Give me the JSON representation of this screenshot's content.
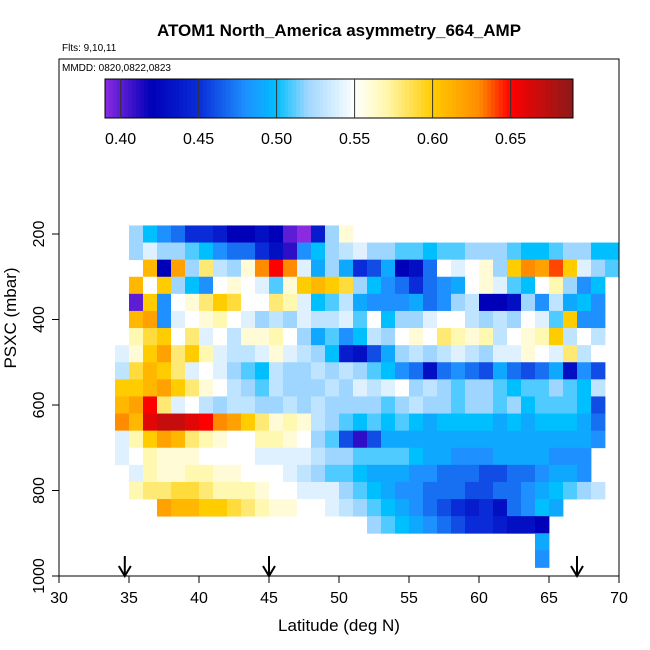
{
  "chart_data": {
    "type": "heatmap",
    "title": "ATOM1 North_America asymmetry_664_AMP",
    "flights_note": "Flts: 9,10,11",
    "dates_note": "MMDD: 0820,0822,0823",
    "xlabel": "Latitude (deg N)",
    "ylabel": "PSXC (mbar)",
    "xlim": [
      30,
      70
    ],
    "ylim": [
      1000,
      0
    ],
    "x_ticks": [
      30,
      35,
      40,
      45,
      50,
      55,
      60,
      65,
      70
    ],
    "y_ticks": [
      200,
      400,
      600,
      800,
      1000
    ],
    "colorbar": {
      "range": [
        0.39,
        0.69
      ],
      "tick_values": [
        0.4,
        0.45,
        0.5,
        0.55,
        0.6,
        0.65
      ],
      "tick_labels": [
        "0.40",
        "0.45",
        "0.50",
        "0.55",
        "0.60",
        "0.65"
      ],
      "stops": [
        {
          "value": 0.39,
          "color": "#8a2be2"
        },
        {
          "value": 0.42,
          "color": "#0000b8"
        },
        {
          "value": 0.45,
          "color": "#0a2cd8"
        },
        {
          "value": 0.48,
          "color": "#1e90ff"
        },
        {
          "value": 0.5,
          "color": "#00bfff"
        },
        {
          "value": 0.52,
          "color": "#9fd6ff"
        },
        {
          "value": 0.55,
          "color": "#ffffff"
        },
        {
          "value": 0.57,
          "color": "#fff8b0"
        },
        {
          "value": 0.6,
          "color": "#ffcc00"
        },
        {
          "value": 0.63,
          "color": "#ff8c00"
        },
        {
          "value": 0.65,
          "color": "#ff0000"
        },
        {
          "value": 0.69,
          "color": "#8b1a1a"
        }
      ]
    },
    "bin_width_deg": 1,
    "bin_height_mbar": 40,
    "cell_rows": [
      {
        "p": 200,
        "lat0": 35,
        "values": [
          0.52,
          0.5,
          0.48,
          0.47,
          0.45,
          0.45,
          0.44,
          0.42,
          0.42,
          0.43,
          0.42,
          0.4,
          0.39,
          0.44,
          0.52,
          0.56
        ]
      },
      {
        "p": 240,
        "lat0": 35,
        "values": [
          0.52,
          0.54,
          0.52,
          0.52,
          0.51,
          0.5,
          0.48,
          0.47,
          0.47,
          0.45,
          0.43,
          0.41,
          0.48,
          0.5,
          0.52,
          0.53,
          0.54,
          0.52,
          0.52,
          0.51,
          0.51,
          0.5,
          0.51,
          0.51,
          0.52,
          0.52,
          0.52,
          0.51,
          0.5,
          0.5,
          0.51,
          0.52,
          0.52,
          0.5,
          0.5
        ]
      },
      {
        "p": 280,
        "lat0": 36,
        "values": [
          0.61,
          0.42,
          0.62,
          0.52,
          0.58,
          0.53,
          0.52,
          0.56,
          0.63,
          0.65,
          0.63,
          0.54,
          0.49,
          0.52,
          0.49,
          0.45,
          0.46,
          0.49,
          0.42,
          0.43,
          0.47,
          0.55,
          0.54,
          0.55,
          0.56,
          0.52,
          0.6,
          0.63,
          0.62,
          0.64,
          0.6,
          0.54,
          0.52,
          0.51
        ]
      },
      {
        "p": 320,
        "lat0": 35,
        "values": [
          0.61,
          0.55,
          0.6,
          0.52,
          0.5,
          0.48,
          0.55,
          0.56,
          0.55,
          0.54,
          0.51,
          0.56,
          0.6,
          0.61,
          0.6,
          0.59,
          0.52,
          0.5,
          0.48,
          0.47,
          0.45,
          0.47,
          0.48,
          0.49,
          0.55,
          0.56,
          0.54,
          0.51,
          0.5,
          0.55,
          0.57,
          0.52,
          0.48,
          0.5
        ]
      },
      {
        "p": 360,
        "lat0": 35,
        "values": [
          0.4,
          0.6,
          0.48,
          0.55,
          0.56,
          0.58,
          0.6,
          0.59,
          0.55,
          0.55,
          0.58,
          0.57,
          0.54,
          0.5,
          0.51,
          0.53,
          0.49,
          0.48,
          0.48,
          0.48,
          0.49,
          0.47,
          0.48,
          0.52,
          0.53,
          0.42,
          0.42,
          0.43,
          0.52,
          0.48,
          0.53,
          0.49,
          0.5,
          0.48
        ]
      },
      {
        "p": 400,
        "lat0": 35,
        "values": [
          0.61,
          0.62,
          0.48,
          0.54,
          0.55,
          0.56,
          0.57,
          0.55,
          0.54,
          0.52,
          0.53,
          0.52,
          0.54,
          0.53,
          0.53,
          0.54,
          0.51,
          0.55,
          0.5,
          0.52,
          0.52,
          0.54,
          0.55,
          0.55,
          0.53,
          0.52,
          0.53,
          0.52,
          0.55,
          0.54,
          0.51,
          0.6,
          0.48,
          0.48
        ]
      },
      {
        "p": 440,
        "lat0": 35,
        "values": [
          0.57,
          0.59,
          0.6,
          0.55,
          0.58,
          0.54,
          0.55,
          0.53,
          0.56,
          0.56,
          0.57,
          0.55,
          0.52,
          0.49,
          0.51,
          0.48,
          0.5,
          0.53,
          0.52,
          0.55,
          0.56,
          0.55,
          0.58,
          0.57,
          0.56,
          0.57,
          0.53,
          0.55,
          0.56,
          0.57,
          0.6,
          0.53,
          0.55,
          0.53
        ]
      },
      {
        "p": 480,
        "lat0": 34,
        "values": [
          0.54,
          0.56,
          0.6,
          0.62,
          0.58,
          0.6,
          0.57,
          0.54,
          0.53,
          0.53,
          0.54,
          0.56,
          0.54,
          0.53,
          0.52,
          0.5,
          0.44,
          0.43,
          0.46,
          0.49,
          0.52,
          0.53,
          0.52,
          0.53,
          0.54,
          0.53,
          0.52,
          0.54,
          0.54,
          0.56,
          0.55,
          0.54,
          0.58,
          0.53,
          0.55
        ]
      },
      {
        "p": 520,
        "lat0": 34,
        "values": [
          0.53,
          0.59,
          0.61,
          0.6,
          0.58,
          0.54,
          0.55,
          0.54,
          0.52,
          0.51,
          0.5,
          0.53,
          0.52,
          0.52,
          0.53,
          0.52,
          0.53,
          0.52,
          0.51,
          0.5,
          0.48,
          0.47,
          0.43,
          0.47,
          0.48,
          0.47,
          0.46,
          0.49,
          0.47,
          0.46,
          0.47,
          0.49,
          0.43,
          0.48,
          0.46
        ]
      },
      {
        "p": 560,
        "lat0": 34,
        "values": [
          0.6,
          0.6,
          0.61,
          0.62,
          0.6,
          0.58,
          0.56,
          0.55,
          0.53,
          0.52,
          0.51,
          0.53,
          0.52,
          0.52,
          0.52,
          0.53,
          0.52,
          0.54,
          0.53,
          0.54,
          0.55,
          0.52,
          0.53,
          0.52,
          0.51,
          0.52,
          0.52,
          0.51,
          0.5,
          0.51,
          0.51,
          0.52,
          0.51,
          0.5,
          0.53
        ]
      },
      {
        "p": 600,
        "lat0": 34,
        "values": [
          0.61,
          0.62,
          0.65,
          0.58,
          0.54,
          0.55,
          0.53,
          0.52,
          0.53,
          0.53,
          0.52,
          0.52,
          0.53,
          0.52,
          0.53,
          0.52,
          0.52,
          0.52,
          0.52,
          0.51,
          0.52,
          0.53,
          0.52,
          0.52,
          0.51,
          0.52,
          0.52,
          0.51,
          0.52,
          0.5,
          0.51,
          0.51,
          0.51,
          0.5,
          0.46
        ]
      },
      {
        "p": 640,
        "lat0": 34,
        "values": [
          0.63,
          0.61,
          0.66,
          0.67,
          0.67,
          0.66,
          0.65,
          0.63,
          0.62,
          0.6,
          0.58,
          0.56,
          0.57,
          0.56,
          0.53,
          0.52,
          0.51,
          0.5,
          0.51,
          0.5,
          0.51,
          0.5,
          0.49,
          0.5,
          0.5,
          0.5,
          0.5,
          0.49,
          0.5,
          0.49,
          0.5,
          0.5,
          0.5,
          0.49,
          0.47
        ]
      },
      {
        "p": 680,
        "lat0": 34,
        "values": [
          0.54,
          0.57,
          0.6,
          0.62,
          0.61,
          0.58,
          0.57,
          0.56,
          0.55,
          0.55,
          0.57,
          0.57,
          0.56,
          0.55,
          0.52,
          0.51,
          0.46,
          0.41,
          0.46,
          0.49,
          0.49,
          0.49,
          0.49,
          0.49,
          0.49,
          0.49,
          0.49,
          0.49,
          0.49,
          0.49,
          0.49,
          0.49,
          0.49,
          0.49,
          0.48
        ]
      },
      {
        "p": 720,
        "lat0": 34,
        "values": [
          0.54,
          0.55,
          0.57,
          0.56,
          0.56,
          0.56,
          0.55,
          0.55,
          0.55,
          0.55,
          0.54,
          0.54,
          0.54,
          0.54,
          0.53,
          0.52,
          0.52,
          0.51,
          0.51,
          0.51,
          0.51,
          0.5,
          0.49,
          0.49,
          0.48,
          0.48,
          0.48,
          0.49,
          0.49,
          0.49,
          0.49,
          0.48,
          0.48,
          0.48
        ]
      },
      {
        "p": 760,
        "lat0": 35,
        "values": [
          0.54,
          0.57,
          0.56,
          0.56,
          0.57,
          0.57,
          0.56,
          0.56,
          0.55,
          0.55,
          0.55,
          0.54,
          0.53,
          0.52,
          0.51,
          0.51,
          0.5,
          0.49,
          0.49,
          0.49,
          0.48,
          0.48,
          0.47,
          0.47,
          0.47,
          0.46,
          0.46,
          0.47,
          0.47,
          0.48,
          0.49,
          0.49,
          0.48
        ]
      },
      {
        "p": 800,
        "lat0": 35,
        "values": [
          0.57,
          0.58,
          0.58,
          0.59,
          0.59,
          0.58,
          0.57,
          0.57,
          0.57,
          0.56,
          0.55,
          0.55,
          0.54,
          0.54,
          0.54,
          0.52,
          0.51,
          0.5,
          0.49,
          0.48,
          0.48,
          0.47,
          0.47,
          0.47,
          0.46,
          0.46,
          0.47,
          0.47,
          0.48,
          0.49,
          0.5,
          0.51,
          0.52,
          0.53
        ]
      },
      {
        "p": 840,
        "lat0": 37,
        "values": [
          0.62,
          0.61,
          0.61,
          0.6,
          0.6,
          0.59,
          0.58,
          0.57,
          0.56,
          0.56,
          0.55,
          0.55,
          0.54,
          0.53,
          0.52,
          0.51,
          0.5,
          0.49,
          0.48,
          0.47,
          0.46,
          0.45,
          0.44,
          0.45,
          0.43,
          0.47,
          0.48,
          0.5,
          0.49
        ]
      },
      {
        "p": 880,
        "lat0": 52,
        "values": [
          0.52,
          0.51,
          0.5,
          0.49,
          0.48,
          0.47,
          0.46,
          0.45,
          0.45,
          0.44,
          0.43,
          0.43,
          0.42
        ]
      },
      {
        "p": 920,
        "lat0": 64,
        "values": [
          0.49
        ]
      },
      {
        "p": 960,
        "lat0": 64,
        "values": [
          0.48
        ]
      }
    ],
    "arrows_at_latitude": [
      34.7,
      45.0,
      67.0
    ]
  }
}
